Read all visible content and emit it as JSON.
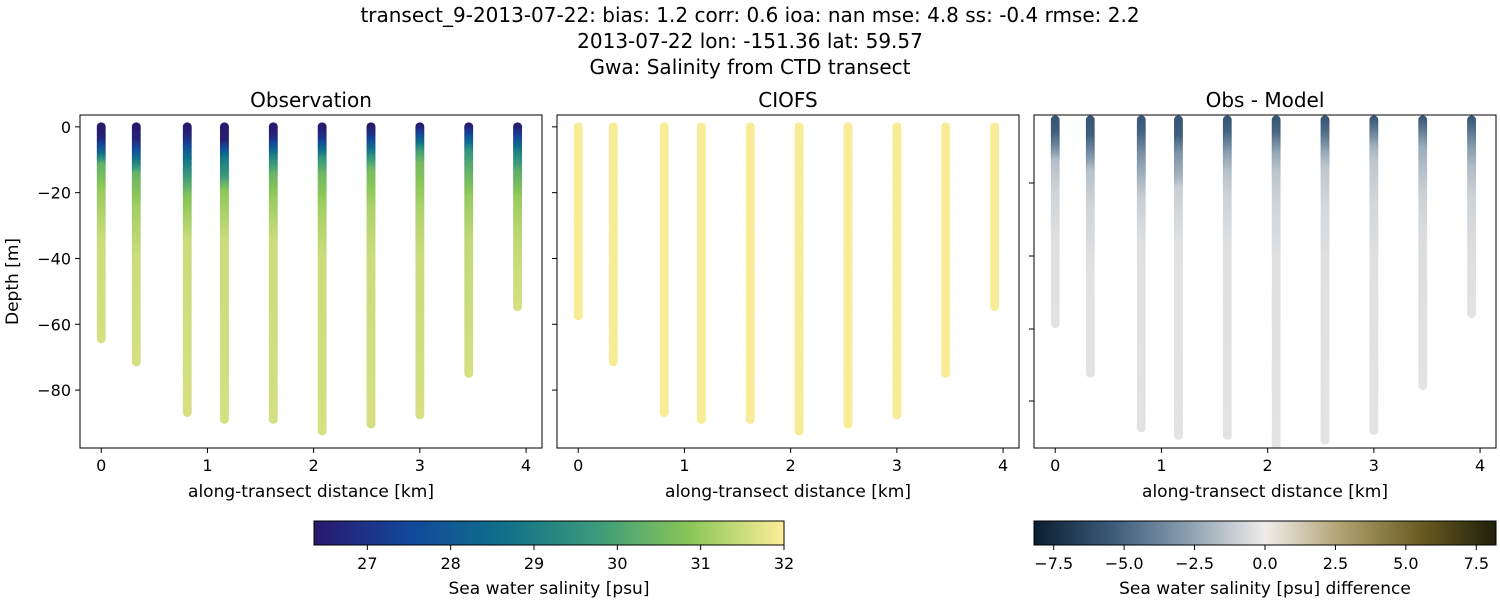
{
  "title_lines": [
    "transect_9-2013-07-22: bias: 1.2  corr: 0.6  ioa: nan  mse: 4.8  ss: -0.4  rmse: 2.2",
    "2013-07-22 lon: -151.36 lat: 59.57",
    "Gwa: Salinity from CTD transect"
  ],
  "chart_data": [
    {
      "type": "scatter",
      "title": "Observation",
      "xlabel": "along-transect distance [km]",
      "ylabel": "Depth [m]",
      "xlim": [
        -0.2,
        4.15
      ],
      "ylim": [
        -97.6,
        3.6
      ],
      "xticks": [
        0,
        1,
        2,
        3,
        4
      ],
      "yticks": [
        0,
        -20,
        -40,
        -60,
        -80
      ],
      "colorbar": "salinity",
      "stations": [
        {
          "x": 0,
          "bottom": -65,
          "profile": [
            [
              0,
              26.3
            ],
            [
              4,
              26.6
            ],
            [
              8,
              28.2
            ],
            [
              12,
              30.3
            ],
            [
              20,
              31.0
            ],
            [
              35,
              31.5
            ],
            [
              65,
              31.6
            ]
          ]
        },
        {
          "x": 0.33,
          "bottom": -72,
          "profile": [
            [
              0,
              26.3
            ],
            [
              5,
              26.7
            ],
            [
              10,
              28.5
            ],
            [
              15,
              30.4
            ],
            [
              25,
              31.1
            ],
            [
              40,
              31.5
            ],
            [
              72,
              31.6
            ]
          ]
        },
        {
          "x": 0.81,
          "bottom": -87,
          "profile": [
            [
              0,
              26.3
            ],
            [
              4,
              26.8
            ],
            [
              10,
              28.6
            ],
            [
              15,
              29.6
            ],
            [
              22,
              30.8
            ],
            [
              35,
              31.5
            ],
            [
              87,
              31.6
            ]
          ]
        },
        {
          "x": 1.16,
          "bottom": -89,
          "profile": [
            [
              0,
              26.3
            ],
            [
              5,
              26.6
            ],
            [
              10,
              28.8
            ],
            [
              16,
              29.8
            ],
            [
              20,
              30.9
            ],
            [
              35,
              31.5
            ],
            [
              89,
              31.6
            ]
          ]
        },
        {
          "x": 1.62,
          "bottom": -89,
          "profile": [
            [
              0,
              26.3
            ],
            [
              4,
              26.8
            ],
            [
              10,
              29.2
            ],
            [
              15,
              30.4
            ],
            [
              22,
              31.0
            ],
            [
              35,
              31.5
            ],
            [
              89,
              31.6
            ]
          ]
        },
        {
          "x": 2.08,
          "bottom": -93,
          "profile": [
            [
              0,
              26.3
            ],
            [
              4,
              27.0
            ],
            [
              10,
              29.5
            ],
            [
              15,
              30.5
            ],
            [
              25,
              31.1
            ],
            [
              40,
              31.5
            ],
            [
              93,
              31.6
            ]
          ]
        },
        {
          "x": 2.54,
          "bottom": -91,
          "profile": [
            [
              0,
              26.3
            ],
            [
              4,
              27.2
            ],
            [
              10,
              29.6
            ],
            [
              14,
              30.6
            ],
            [
              25,
              31.2
            ],
            [
              40,
              31.5
            ],
            [
              91,
              31.6
            ]
          ]
        },
        {
          "x": 3.0,
          "bottom": -88,
          "profile": [
            [
              0,
              26.4
            ],
            [
              3,
              27.5
            ],
            [
              8,
              29.8
            ],
            [
              12,
              30.6
            ],
            [
              25,
              31.2
            ],
            [
              40,
              31.5
            ],
            [
              88,
              31.6
            ]
          ]
        },
        {
          "x": 3.46,
          "bottom": -75,
          "profile": [
            [
              0,
              26.4
            ],
            [
              3,
              27.5
            ],
            [
              8,
              29.6
            ],
            [
              15,
              30.4
            ],
            [
              22,
              31.0
            ],
            [
              35,
              31.4
            ],
            [
              75,
              31.6
            ]
          ]
        },
        {
          "x": 3.92,
          "bottom": -55,
          "profile": [
            [
              0,
              26.4
            ],
            [
              3,
              27.2
            ],
            [
              8,
              29.0
            ],
            [
              14,
              30.2
            ],
            [
              22,
              31.0
            ],
            [
              35,
              31.4
            ],
            [
              55,
              31.6
            ]
          ]
        }
      ]
    },
    {
      "type": "scatter",
      "title": "CIOFS",
      "xlabel": "along-transect distance [km]",
      "xlim": [
        -0.2,
        4.15
      ],
      "ylim": [
        -97.6,
        3.6
      ],
      "xticks": [
        0,
        1,
        2,
        3,
        4
      ],
      "colorbar": "salinity",
      "stations": [
        {
          "x": 0,
          "bottom": -58,
          "value": 31.95
        },
        {
          "x": 0.33,
          "bottom": -72,
          "value": 31.95
        },
        {
          "x": 0.81,
          "bottom": -87,
          "value": 31.95
        },
        {
          "x": 1.16,
          "bottom": -89,
          "value": 31.95
        },
        {
          "x": 1.62,
          "bottom": -89,
          "value": 31.95
        },
        {
          "x": 2.08,
          "bottom": -93,
          "value": 31.95
        },
        {
          "x": 2.54,
          "bottom": -91,
          "value": 31.95
        },
        {
          "x": 3.0,
          "bottom": -88,
          "value": 31.95
        },
        {
          "x": 3.46,
          "bottom": -75,
          "value": 31.95
        },
        {
          "x": 3.92,
          "bottom": -55,
          "value": 31.95
        }
      ]
    },
    {
      "type": "scatter",
      "title": "Obs - Model",
      "xlabel": "along-transect distance [km]",
      "xlim": [
        -0.2,
        4.15
      ],
      "ylim": [
        -92.5,
        1.4
      ],
      "xticks": [
        0,
        1,
        2,
        3,
        4
      ],
      "colorbar": "difference",
      "note_stations": "difference = observation minus model"
    },
    {
      "type": "colorbar",
      "label": "Sea water salinity [psu]",
      "range": [
        26.36,
        32
      ],
      "ticks": [
        27,
        28,
        29,
        30,
        31,
        32
      ]
    },
    {
      "type": "colorbar",
      "label": "Sea water salinity [psu] difference",
      "range": [
        -8.2,
        8.2
      ],
      "ticks": [
        "−7.5",
        "−5.0",
        "−2.5",
        "0.0",
        "2.5",
        "5.0",
        "7.5"
      ],
      "tick_values": [
        -7.5,
        -5,
        -2.5,
        0,
        2.5,
        5,
        7.5
      ]
    }
  ],
  "colormaps": {
    "salinity": [
      "#2a186c",
      "#13479a",
      "#0f6f8a",
      "#3b9a7b",
      "#8ac658",
      "#fdee99"
    ],
    "difference": [
      "#0a1e30",
      "#3b5a78",
      "#8a9fb0",
      "#efedeb",
      "#b0a170",
      "#6b5d22",
      "#1f200a"
    ]
  }
}
